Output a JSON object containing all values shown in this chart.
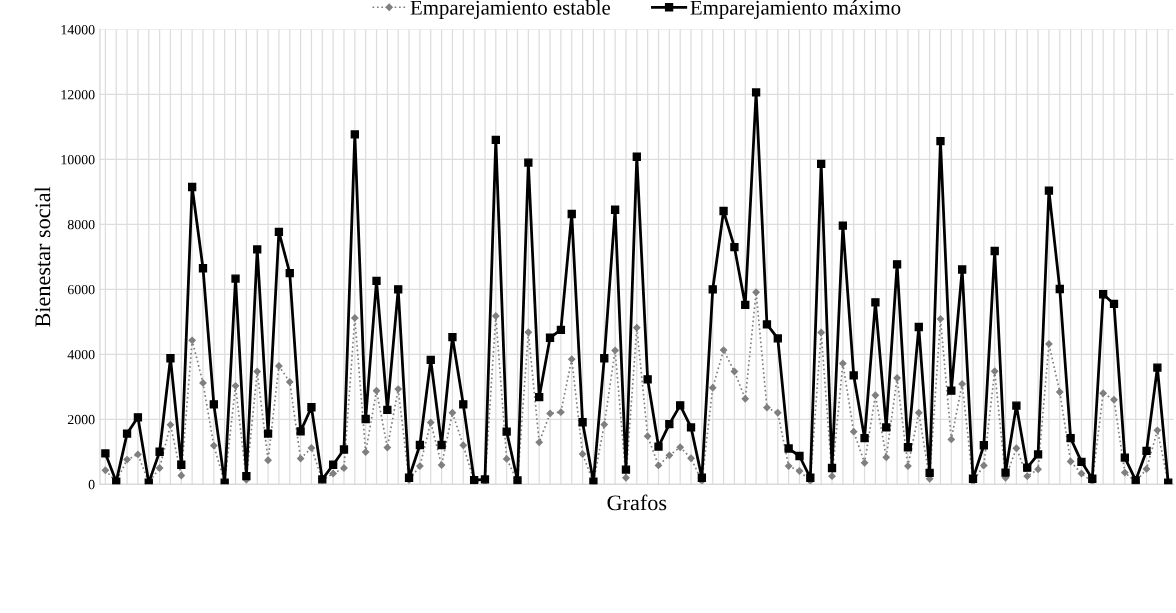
{
  "chart_data": {
    "type": "line",
    "xlabel": "Grafos",
    "ylabel": "Bienestar social",
    "categories": [
      null,
      null,
      null,
      null,
      null,
      null,
      null,
      null,
      null,
      null,
      null,
      null,
      null,
      null,
      null,
      null,
      null,
      null,
      null,
      null,
      null,
      null,
      null,
      null,
      null,
      null,
      null,
      null,
      null,
      null,
      null,
      null,
      null,
      null,
      null,
      null,
      null,
      null,
      null,
      null,
      null,
      null,
      null,
      null,
      null,
      null,
      null,
      null,
      null,
      null,
      null,
      null,
      null,
      null,
      null,
      null,
      null,
      null,
      null,
      null,
      null,
      null,
      null,
      null,
      null,
      null,
      null,
      null,
      null,
      null,
      null,
      null,
      null,
      null,
      null,
      null,
      null,
      null,
      null,
      null,
      null,
      null,
      null,
      null,
      null,
      null,
      null,
      null,
      null,
      null,
      null,
      null,
      null,
      null,
      null,
      null,
      null,
      null,
      null
    ],
    "ylim": [
      0,
      14000
    ],
    "yticks": [
      0,
      2000,
      4000,
      6000,
      8000,
      10000,
      12000,
      14000
    ],
    "grid": true,
    "legend": "top",
    "series": [
      {
        "name": "Emparejamiento estable",
        "color": "#7f7f7f",
        "marker": "diamond",
        "line_style": "dotted",
        "values": [
          430,
          80,
          760,
          920,
          60,
          500,
          1830,
          270,
          4430,
          3120,
          1190,
          50,
          3030,
          140,
          3470,
          740,
          3640,
          3150,
          790,
          1120,
          130,
          330,
          500,
          5120,
          990,
          2880,
          1130,
          2930,
          130,
          560,
          1900,
          590,
          2200,
          1200,
          80,
          80,
          5180,
          780,
          80,
          4680,
          1290,
          2180,
          2220,
          3850,
          930,
          60,
          1840,
          4120,
          200,
          4820,
          1480,
          580,
          890,
          1140,
          800,
          100,
          2970,
          4130,
          3470,
          2630,
          5910,
          2360,
          2200,
          560,
          410,
          100,
          4670,
          250,
          3720,
          1620,
          660,
          2740,
          830,
          3270,
          560,
          2200,
          170,
          5090,
          1380,
          3090,
          80,
          580,
          3480,
          200,
          1110,
          250,
          460,
          4320,
          2840,
          700,
          330,
          80,
          2800,
          2600,
          360,
          80,
          470,
          1660,
          50
        ]
      },
      {
        "name": "Emparejamiento máximo",
        "color": "#000000",
        "marker": "square",
        "line_style": "solid",
        "values": [
          950,
          80,
          1560,
          2060,
          50,
          1000,
          3880,
          600,
          9150,
          6650,
          2460,
          50,
          6330,
          250,
          7230,
          1560,
          7770,
          6500,
          1630,
          2370,
          150,
          600,
          1070,
          10770,
          2010,
          6260,
          2290,
          6000,
          200,
          1210,
          3830,
          1210,
          4530,
          2460,
          130,
          150,
          10600,
          1620,
          120,
          9900,
          2680,
          4510,
          4750,
          8320,
          1910,
          80,
          3880,
          8450,
          450,
          10080,
          3230,
          1160,
          1850,
          2430,
          1750,
          200,
          6000,
          8410,
          7300,
          5520,
          12060,
          4920,
          4490,
          1100,
          870,
          200,
          9860,
          500,
          7960,
          3350,
          1420,
          5600,
          1750,
          6770,
          1140,
          4840,
          350,
          10560,
          2880,
          6610,
          170,
          1200,
          7180,
          360,
          2420,
          510,
          920,
          9040,
          6010,
          1420,
          690,
          170,
          5850,
          5550,
          820,
          120,
          1030,
          3590,
          50
        ]
      }
    ]
  }
}
